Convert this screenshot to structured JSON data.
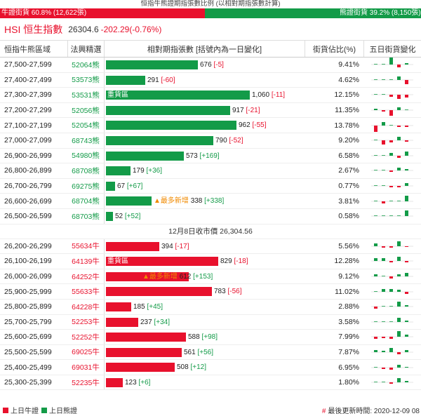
{
  "ratio": {
    "title": "恒指牛熊證期指張數比例 (以相對期指張數計算)",
    "bull_label": "牛證街貨 60.8% (12,622張)",
    "bear_label": "熊證街貨 39.2% (8,150張)",
    "bull_fraction": 0.608
  },
  "header": {
    "name": "HSI 恒生指數",
    "price": "26304.6",
    "change": "-202.29(-0.76%)"
  },
  "columns": {
    "range": "恒指牛熊區域",
    "code": "法興精選",
    "bar": "相對期指張數 [括號內為一日變化]",
    "pct": "街貨佔比(%)",
    "spark": "五日街貨變化"
  },
  "bear_rows": [
    {
      "range": "27,500-27,599",
      "code": "52064熊",
      "value": 676,
      "value_text": "676",
      "change": "[-5]",
      "change_sign": "neg",
      "tag": "",
      "new": "",
      "pct": "9.41%",
      "spark": [
        0,
        0,
        12,
        -4,
        2
      ]
    },
    {
      "range": "27,400-27,499",
      "code": "53573熊",
      "value": 291,
      "value_text": "291",
      "change": "[-60]",
      "change_sign": "neg",
      "tag": "",
      "new": "",
      "pct": "4.62%",
      "spark": [
        0,
        0,
        0,
        5,
        -6
      ]
    },
    {
      "range": "27,300-27,399",
      "code": "53531熊",
      "value": 1060,
      "value_text": "1,060",
      "change": "[-11]",
      "change_sign": "neg",
      "tag": "重貨區",
      "new": "",
      "pct": "12.15%",
      "spark": [
        0,
        0,
        -3,
        -6,
        -4
      ]
    },
    {
      "range": "27,200-27,299",
      "code": "52056熊",
      "value": 917,
      "value_text": "917",
      "change": "[-21]",
      "change_sign": "neg",
      "tag": "",
      "new": "",
      "pct": "11.35%",
      "spark": [
        2,
        -2,
        -8,
        4,
        0
      ]
    },
    {
      "range": "27,100-27,199",
      "code": "52054熊",
      "value": 962,
      "value_text": "962",
      "change": "[-55]",
      "change_sign": "neg",
      "tag": "",
      "new": "",
      "pct": "13.78%",
      "spark": [
        -9,
        5,
        0,
        -2,
        -2
      ]
    },
    {
      "range": "27,000-27,099",
      "code": "68743熊",
      "value": 790,
      "value_text": "790",
      "change": "[-52]",
      "change_sign": "neg",
      "tag": "",
      "new": "",
      "pct": "9.20%",
      "spark": [
        0,
        -6,
        -3,
        5,
        -2
      ]
    },
    {
      "range": "26,900-26,999",
      "code": "54980熊",
      "value": 573,
      "value_text": "573",
      "change": "[+169]",
      "change_sign": "pos",
      "tag": "",
      "new": "",
      "pct": "6.58%",
      "spark": [
        0,
        0,
        4,
        -3,
        6
      ]
    },
    {
      "range": "26,800-26,899",
      "code": "68708熊",
      "value": 179,
      "value_text": "179",
      "change": "[+36]",
      "change_sign": "pos",
      "tag": "",
      "new": "",
      "pct": "2.67%",
      "spark": [
        0,
        0,
        -2,
        4,
        2
      ]
    },
    {
      "range": "26,700-26,799",
      "code": "69275熊",
      "value": 67,
      "value_text": "67",
      "change": "[+67]",
      "change_sign": "pos",
      "tag": "",
      "new": "",
      "pct": "0.77%",
      "spark": [
        0,
        0,
        -2,
        -2,
        4
      ]
    },
    {
      "range": "26,600-26,699",
      "code": "68704熊",
      "value": 338,
      "value_text": "338",
      "change": "[+338]",
      "change_sign": "pos",
      "tag": "",
      "new": "▲最多新增",
      "pct": "3.81%",
      "spark": [
        0,
        -3,
        0,
        0,
        8
      ]
    },
    {
      "range": "26,500-26,599",
      "code": "68703熊",
      "value": 52,
      "value_text": "52",
      "change": "[+52]",
      "change_sign": "pos",
      "tag": "",
      "new": "",
      "pct": "0.58%",
      "spark": [
        0,
        0,
        0,
        0,
        8
      ]
    }
  ],
  "close_label": "12月8日收市價 26,304.56",
  "bull_rows": [
    {
      "range": "26,200-26,299",
      "code": "55634牛",
      "value": 394,
      "value_text": "394",
      "change": "[-17]",
      "change_sign": "neg",
      "tag": "",
      "new": "",
      "pct": "5.56%",
      "spark": [
        4,
        -2,
        -2,
        7,
        -1
      ]
    },
    {
      "range": "26,100-26,199",
      "code": "64139牛",
      "value": 829,
      "value_text": "829",
      "change": "[-18]",
      "change_sign": "neg",
      "tag": "重貨區",
      "new": "",
      "pct": "12.28%",
      "spark": [
        4,
        4,
        -2,
        6,
        -2
      ]
    },
    {
      "range": "26,000-26,099",
      "code": "64252牛",
      "value": 612,
      "value_text": "612",
      "change": "[+153]",
      "change_sign": "pos",
      "tag": "",
      "new": "▲最多新增",
      "pct": "9.12%",
      "spark": [
        3,
        0,
        -3,
        3,
        5
      ]
    },
    {
      "range": "25,900-25,999",
      "code": "55633牛",
      "value": 783,
      "value_text": "783",
      "change": "[-56]",
      "change_sign": "neg",
      "tag": "",
      "new": "",
      "pct": "11.02%",
      "spark": [
        0,
        4,
        4,
        3,
        -3
      ]
    },
    {
      "range": "25,800-25,899",
      "code": "64228牛",
      "value": 185,
      "value_text": "185",
      "change": "[+45]",
      "change_sign": "pos",
      "tag": "",
      "new": "",
      "pct": "2.88%",
      "spark": [
        -3,
        0,
        0,
        7,
        2
      ]
    },
    {
      "range": "25,700-25,799",
      "code": "52253牛",
      "value": 237,
      "value_text": "237",
      "change": "[+34]",
      "change_sign": "pos",
      "tag": "",
      "new": "",
      "pct": "3.58%",
      "spark": [
        0,
        0,
        0,
        6,
        2
      ]
    },
    {
      "range": "25,600-25,699",
      "code": "52252牛",
      "value": 588,
      "value_text": "588",
      "change": "[+98]",
      "change_sign": "pos",
      "tag": "",
      "new": "",
      "pct": "7.99%",
      "spark": [
        -3,
        -2,
        -3,
        8,
        3
      ]
    },
    {
      "range": "25,500-25,599",
      "code": "69025牛",
      "value": 561,
      "value_text": "561",
      "change": "[+56]",
      "change_sign": "pos",
      "tag": "",
      "new": "",
      "pct": "7.87%",
      "spark": [
        3,
        2,
        6,
        -3,
        3
      ]
    },
    {
      "range": "25,400-25,499",
      "code": "69031牛",
      "value": 508,
      "value_text": "508",
      "change": "[+12]",
      "change_sign": "pos",
      "tag": "",
      "new": "",
      "pct": "6.95%",
      "spark": [
        0,
        -2,
        -3,
        4,
        1
      ]
    },
    {
      "range": "25,300-25,399",
      "code": "52235牛",
      "value": 123,
      "value_text": "123",
      "change": "[+6]",
      "change_sign": "pos",
      "tag": "",
      "new": "",
      "pct": "1.80%",
      "spark": [
        0,
        0,
        -2,
        6,
        2
      ]
    }
  ],
  "footer": {
    "bull_legend": "上日牛證",
    "bear_legend": "上日熊證",
    "hash": "#",
    "updated": "最後更新時間: 2020-12-09 08"
  },
  "colors": {
    "bull": "#e8112d",
    "bear": "#139b48",
    "new": "#f08a00"
  }
}
